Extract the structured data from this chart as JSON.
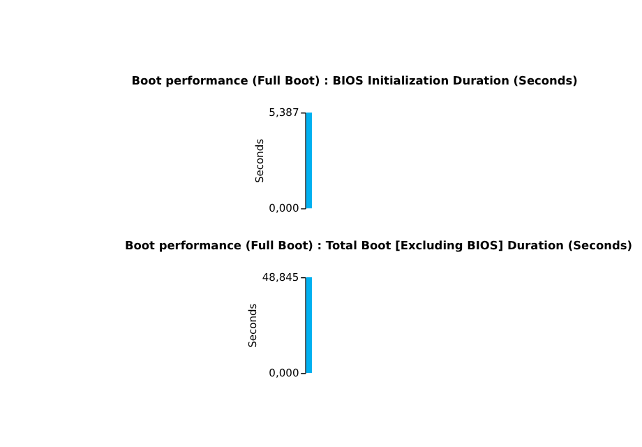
{
  "chart_data": [
    {
      "type": "bar",
      "title": "Boot performance (Full Boot) :  BIOS Initialization Duration (Seconds)",
      "ylabel": "Seconds",
      "categories": [
        null
      ],
      "values": [
        5.387
      ],
      "color": "#00b0f0",
      "ylim": [
        0,
        5.387
      ],
      "yticks": [
        {
          "value": 0,
          "label": "0,000"
        },
        {
          "value": 5.387,
          "label": "5,387"
        }
      ],
      "grid": false
    },
    {
      "type": "bar",
      "title": "Boot performance (Full Boot) :  Total Boot [Excluding BIOS] Duration (Seconds)",
      "ylabel": "Seconds",
      "categories": [
        null
      ],
      "values": [
        48.845
      ],
      "color": "#00b0f0",
      "ylim": [
        0,
        48.845
      ],
      "yticks": [
        {
          "value": 0,
          "label": "0,000"
        },
        {
          "value": 48.845,
          "label": "48,845"
        }
      ],
      "grid": false
    }
  ]
}
